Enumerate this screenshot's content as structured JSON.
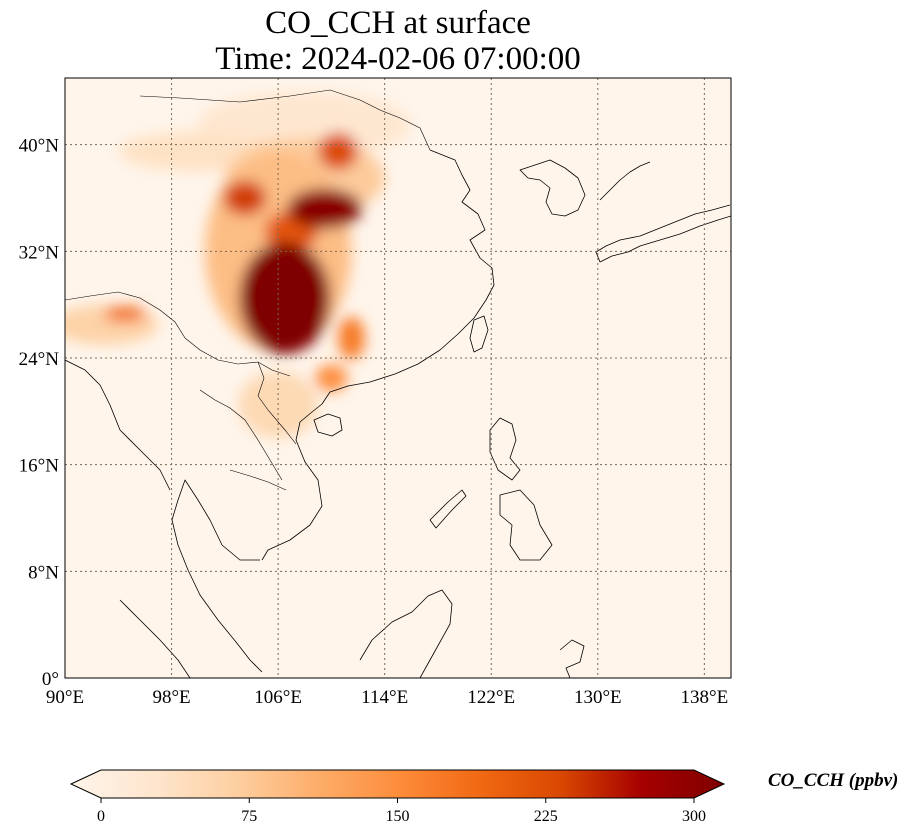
{
  "title": "CO_CCH at surface",
  "subtitle": "Time: 2024-02-06 07:00:00",
  "map": {
    "variable": "CO_CCH",
    "level": "surface",
    "time": "2024-02-06 07:00:00",
    "lon_range": [
      90,
      140
    ],
    "lat_range": [
      0,
      45
    ],
    "lon_ticks": [
      {
        "value": 90,
        "label": "90°E"
      },
      {
        "value": 98,
        "label": "98°E"
      },
      {
        "value": 106,
        "label": "106°E"
      },
      {
        "value": 114,
        "label": "114°E"
      },
      {
        "value": 122,
        "label": "122°E"
      },
      {
        "value": 130,
        "label": "130°E"
      },
      {
        "value": 138,
        "label": "138°E"
      }
    ],
    "lat_ticks": [
      {
        "value": 0,
        "label": "0°"
      },
      {
        "value": 8,
        "label": "8°N"
      },
      {
        "value": 16,
        "label": "16°N"
      },
      {
        "value": 24,
        "label": "24°N"
      },
      {
        "value": 32,
        "label": "32°N"
      },
      {
        "value": 40,
        "label": "40°N"
      }
    ],
    "gridlines": true,
    "colormap": [
      "#fff5eb",
      "#fee6ce",
      "#fdd0a2",
      "#fdae6b",
      "#fd8d3c",
      "#f16913",
      "#d94801",
      "#a50000",
      "#7f0000"
    ],
    "plumes": [
      {
        "lon": 106.5,
        "lat": 28.5,
        "rlon": 3.4,
        "rlat": 4.2,
        "value": 310
      },
      {
        "lon": 109.5,
        "lat": 35.2,
        "rlon": 2.8,
        "rlat": 1.5,
        "value": 290
      },
      {
        "lon": 103.5,
        "lat": 36.0,
        "rlon": 1.6,
        "rlat": 1.3,
        "value": 230
      },
      {
        "lon": 110.5,
        "lat": 39.5,
        "rlon": 1.5,
        "rlat": 1.4,
        "value": 220
      },
      {
        "lon": 107.0,
        "lat": 33.5,
        "rlon": 2.0,
        "rlat": 1.5,
        "value": 210
      },
      {
        "lon": 111.5,
        "lat": 25.5,
        "rlon": 1.0,
        "rlat": 1.6,
        "value": 170
      },
      {
        "lon": 110.0,
        "lat": 22.5,
        "rlon": 1.2,
        "rlat": 1.0,
        "value": 150
      },
      {
        "lon": 94.5,
        "lat": 27.3,
        "rlon": 1.6,
        "rlat": 0.6,
        "value": 180
      },
      {
        "lon": 106.0,
        "lat": 32.0,
        "rlon": 5.5,
        "rlat": 7.5,
        "value": 95
      },
      {
        "lon": 108.0,
        "lat": 37.5,
        "rlon": 6.0,
        "rlat": 3.0,
        "value": 80
      },
      {
        "lon": 106.0,
        "lat": 20.5,
        "rlon": 3.0,
        "rlat": 2.5,
        "value": 60
      },
      {
        "lon": 100.0,
        "lat": 39.5,
        "rlon": 6.0,
        "rlat": 1.5,
        "value": 45
      },
      {
        "lon": 93.0,
        "lat": 26.5,
        "rlon": 4.0,
        "rlat": 1.5,
        "value": 70
      },
      {
        "lon": 108.0,
        "lat": 41.5,
        "rlon": 8.0,
        "rlat": 2.5,
        "value": 35
      }
    ]
  },
  "colorbar": {
    "label": "CO_CCH (ppbv)",
    "min": 0,
    "max": 300,
    "extend": "both",
    "ticks": [
      {
        "value": 0,
        "label": "0"
      },
      {
        "value": 75,
        "label": "75"
      },
      {
        "value": 150,
        "label": "150"
      },
      {
        "value": 225,
        "label": "225"
      },
      {
        "value": 300,
        "label": "300"
      }
    ]
  }
}
